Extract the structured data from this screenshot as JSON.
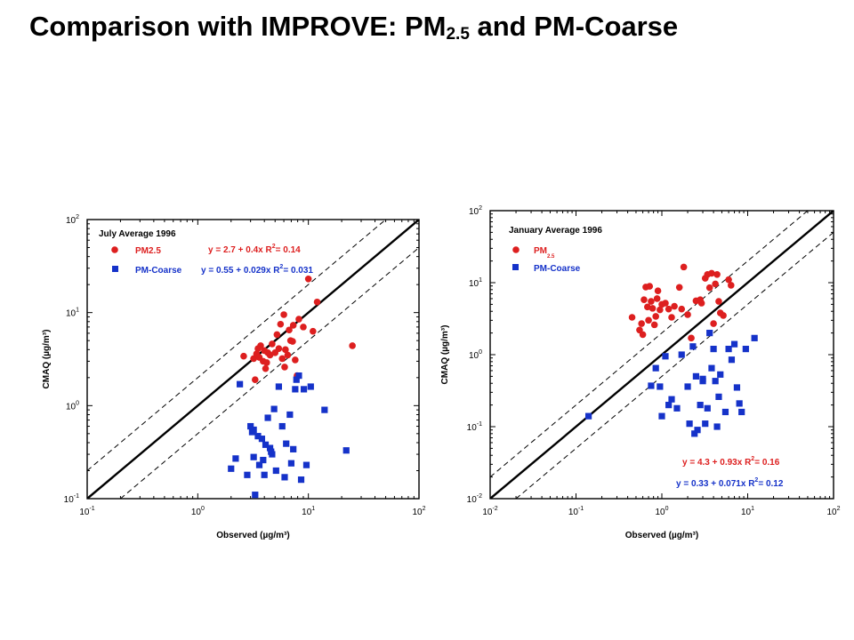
{
  "title": {
    "text_main": "Comparison with IMPROVE: PM",
    "text_sub": "2.5",
    "text_rest": " and PM-Coarse"
  },
  "colors": {
    "pm25": "#dd1f1f",
    "coarse": "#1532c9"
  },
  "chart_data": [
    {
      "type": "scatter",
      "scale": "log",
      "xlabel": "Observed (µg/m³)",
      "ylabel": "CMAQ (µg/m³)",
      "xlim": [
        0.1,
        100
      ],
      "ylim": [
        0.1,
        100
      ],
      "x_ticks": [
        0.1,
        1,
        10,
        100
      ],
      "y_ticks": [
        0.1,
        1,
        10,
        100
      ],
      "tick_label_base": "10",
      "x_tick_exponents": [
        "-1",
        "0",
        "1",
        "2"
      ],
      "y_tick_exponents": [
        "-1",
        "0",
        "1",
        "2"
      ],
      "annotation": "July Average 1996",
      "legend": [
        "PM2.5",
        "PM-Coarse"
      ],
      "equations": [
        {
          "fit": "y = 2.7 + 0.4x",
          "r2_label": "R",
          "r2_sup": "2",
          "r2_value": "= 0.14"
        },
        {
          "fit": "y = 0.55 + 0.029x",
          "r2_label": "R",
          "r2_sup": "2",
          "r2_value": "= 0.031"
        }
      ],
      "reference_lines": [
        "1:1",
        "2:1",
        "1:2"
      ],
      "series": [
        {
          "name": "PM2.5",
          "marker": "circle",
          "points": [
            [
              2.6,
              3.4
            ],
            [
              3.2,
              3.2
            ],
            [
              3.4,
              3.6
            ],
            [
              3.5,
              4.1
            ],
            [
              3.7,
              4.4
            ],
            [
              3.9,
              3.0
            ],
            [
              4.0,
              3.9
            ],
            [
              4.2,
              2.9
            ],
            [
              4.5,
              3.5
            ],
            [
              4.7,
              4.6
            ],
            [
              5.0,
              3.7
            ],
            [
              5.2,
              5.8
            ],
            [
              5.4,
              4.1
            ],
            [
              5.6,
              7.5
            ],
            [
              5.8,
              3.2
            ],
            [
              6.0,
              9.5
            ],
            [
              6.2,
              4.0
            ],
            [
              6.5,
              3.5
            ],
            [
              6.7,
              6.5
            ],
            [
              6.9,
              5.0
            ],
            [
              7.3,
              7.3
            ],
            [
              7.6,
              3.1
            ],
            [
              7.9,
              2.1
            ],
            [
              8.2,
              8.5
            ],
            [
              9.0,
              7.0
            ],
            [
              10.0,
              23.0
            ],
            [
              11.0,
              6.3
            ],
            [
              12.0,
              13.0
            ],
            [
              25.0,
              4.4
            ],
            [
              3.3,
              1.9
            ],
            [
              3.6,
              3.3
            ],
            [
              4.1,
              2.5
            ],
            [
              4.3,
              3.7
            ],
            [
              6.1,
              2.6
            ],
            [
              7.2,
              4.9
            ]
          ]
        },
        {
          "name": "PM-Coarse",
          "marker": "square",
          "points": [
            [
              2.0,
              0.21
            ],
            [
              2.2,
              0.27
            ],
            [
              2.4,
              1.7
            ],
            [
              2.8,
              0.18
            ],
            [
              3.0,
              0.6
            ],
            [
              3.1,
              0.52
            ],
            [
              3.2,
              0.28
            ],
            [
              3.3,
              0.11
            ],
            [
              3.5,
              0.47
            ],
            [
              3.6,
              0.23
            ],
            [
              3.8,
              0.44
            ],
            [
              3.9,
              0.26
            ],
            [
              4.0,
              0.18
            ],
            [
              4.1,
              0.38
            ],
            [
              4.3,
              0.74
            ],
            [
              4.5,
              0.35
            ],
            [
              4.7,
              0.3
            ],
            [
              4.9,
              0.92
            ],
            [
              5.1,
              0.2
            ],
            [
              5.4,
              1.6
            ],
            [
              5.8,
              0.6
            ],
            [
              6.1,
              0.17
            ],
            [
              6.3,
              0.39
            ],
            [
              6.8,
              0.8
            ],
            [
              7.0,
              0.24
            ],
            [
              7.3,
              0.34
            ],
            [
              7.6,
              1.5
            ],
            [
              7.8,
              1.9
            ],
            [
              8.2,
              2.1
            ],
            [
              8.6,
              0.16
            ],
            [
              9.1,
              1.5
            ],
            [
              9.6,
              0.23
            ],
            [
              10.5,
              1.6
            ],
            [
              14.0,
              0.9
            ],
            [
              22.0,
              0.33
            ],
            [
              3.2,
              0.55
            ],
            [
              4.6,
              0.32
            ]
          ]
        }
      ]
    },
    {
      "type": "scatter",
      "scale": "log",
      "xlabel": "Observed (µg/m³)",
      "ylabel": "CMAQ (µg/m³)",
      "xlim": [
        0.01,
        100
      ],
      "ylim": [
        0.01,
        100
      ],
      "x_ticks": [
        0.01,
        0.1,
        1,
        10,
        100
      ],
      "y_ticks": [
        0.01,
        0.1,
        1,
        10,
        100
      ],
      "tick_label_base": "10",
      "x_tick_exponents": [
        "-2",
        "-1",
        "0",
        "1",
        "2"
      ],
      "y_tick_exponents": [
        "-2",
        "-1",
        "0",
        "1",
        "2"
      ],
      "annotation": "January Average 1996",
      "legend_pm25_main": "PM",
      "legend_pm25_sub": "2.5",
      "legend_coarse": "PM-Coarse",
      "equations": [
        {
          "fit": "y = 4.3 + 0.93x",
          "r2_label": "R",
          "r2_sup": "2",
          "r2_value": "= 0.16"
        },
        {
          "fit": "y = 0.33 + 0.071x",
          "r2_label": "R",
          "r2_sup": "2",
          "r2_value": "= 0.12"
        }
      ],
      "reference_lines": [
        "1:1",
        "2:1",
        "1:2"
      ],
      "series": [
        {
          "name": "PM2.5",
          "marker": "circle",
          "points": [
            [
              0.45,
              3.3
            ],
            [
              0.55,
              2.2
            ],
            [
              0.58,
              2.7
            ],
            [
              0.62,
              5.8
            ],
            [
              0.65,
              8.7
            ],
            [
              0.68,
              4.6
            ],
            [
              0.7,
              3.0
            ],
            [
              0.72,
              8.9
            ],
            [
              0.75,
              5.5
            ],
            [
              0.78,
              4.4
            ],
            [
              0.82,
              2.6
            ],
            [
              0.85,
              3.4
            ],
            [
              0.88,
              6.0
            ],
            [
              0.9,
              7.7
            ],
            [
              0.95,
              4.2
            ],
            [
              1.0,
              5.0
            ],
            [
              1.1,
              5.2
            ],
            [
              1.2,
              4.3
            ],
            [
              1.3,
              3.3
            ],
            [
              1.4,
              4.7
            ],
            [
              1.6,
              8.6
            ],
            [
              1.7,
              4.3
            ],
            [
              1.8,
              16.5
            ],
            [
              2.0,
              3.6
            ],
            [
              2.2,
              1.7
            ],
            [
              2.5,
              5.6
            ],
            [
              2.9,
              5.2
            ],
            [
              3.2,
              11.5
            ],
            [
              3.4,
              13.0
            ],
            [
              3.6,
              8.5
            ],
            [
              3.8,
              13.5
            ],
            [
              4.0,
              2.7
            ],
            [
              4.2,
              9.6
            ],
            [
              4.4,
              13.0
            ],
            [
              4.6,
              5.5
            ],
            [
              4.8,
              3.8
            ],
            [
              5.2,
              3.5
            ],
            [
              6.0,
              11.0
            ],
            [
              6.4,
              9.2
            ],
            [
              2.8,
              5.8
            ],
            [
              0.6,
              1.9
            ]
          ]
        },
        {
          "name": "PM-Coarse",
          "marker": "square",
          "points": [
            [
              0.14,
              0.14
            ],
            [
              0.75,
              0.37
            ],
            [
              0.85,
              0.65
            ],
            [
              0.95,
              0.36
            ],
            [
              1.0,
              0.14
            ],
            [
              1.1,
              0.95
            ],
            [
              1.2,
              0.2
            ],
            [
              1.3,
              0.24
            ],
            [
              1.5,
              0.18
            ],
            [
              1.7,
              1.0
            ],
            [
              2.0,
              0.36
            ],
            [
              2.1,
              0.11
            ],
            [
              2.3,
              1.3
            ],
            [
              2.5,
              0.5
            ],
            [
              2.6,
              0.09
            ],
            [
              2.8,
              0.2
            ],
            [
              3.0,
              0.43
            ],
            [
              3.2,
              0.11
            ],
            [
              3.4,
              0.18
            ],
            [
              3.6,
              2.0
            ],
            [
              3.8,
              0.65
            ],
            [
              4.0,
              1.2
            ],
            [
              4.2,
              0.43
            ],
            [
              4.4,
              0.1
            ],
            [
              4.6,
              0.26
            ],
            [
              4.8,
              0.53
            ],
            [
              5.5,
              0.16
            ],
            [
              6.0,
              1.2
            ],
            [
              6.5,
              0.85
            ],
            [
              7.0,
              1.4
            ],
            [
              7.5,
              0.35
            ],
            [
              8.0,
              0.21
            ],
            [
              8.5,
              0.16
            ],
            [
              9.5,
              1.2
            ],
            [
              12.0,
              1.7
            ],
            [
              2.4,
              0.08
            ],
            [
              3.0,
              0.46
            ]
          ]
        }
      ]
    }
  ]
}
